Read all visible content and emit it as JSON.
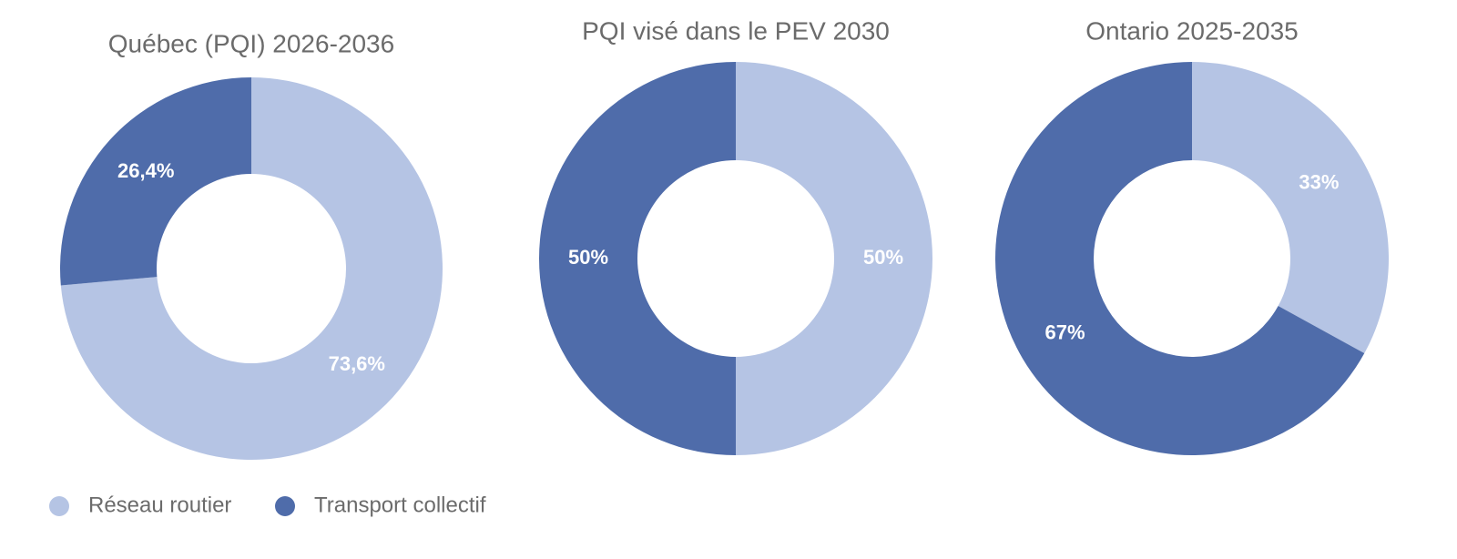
{
  "chart_data": [
    {
      "type": "pie",
      "title": "Québec (PQI) 2026-2036",
      "categories": [
        "Réseau routier",
        "Transport collectif"
      ],
      "values": [
        73.6,
        26.4
      ],
      "value_labels": [
        "73,6%",
        "26,4%"
      ],
      "colors": [
        "#b5c4e4",
        "#4f6caa"
      ]
    },
    {
      "type": "pie",
      "title": "PQI visé dans le PEV 2030",
      "categories": [
        "Réseau routier",
        "Transport collectif"
      ],
      "values": [
        50,
        50
      ],
      "value_labels": [
        "50%",
        "50%"
      ],
      "colors": [
        "#b5c4e4",
        "#4f6caa"
      ]
    },
    {
      "type": "pie",
      "title": "Ontario 2025-2035",
      "categories": [
        "Réseau routier",
        "Transport collectif"
      ],
      "values": [
        33,
        67
      ],
      "value_labels": [
        "33%",
        "67%"
      ],
      "colors": [
        "#b5c4e4",
        "#4f6caa"
      ]
    }
  ]
}
